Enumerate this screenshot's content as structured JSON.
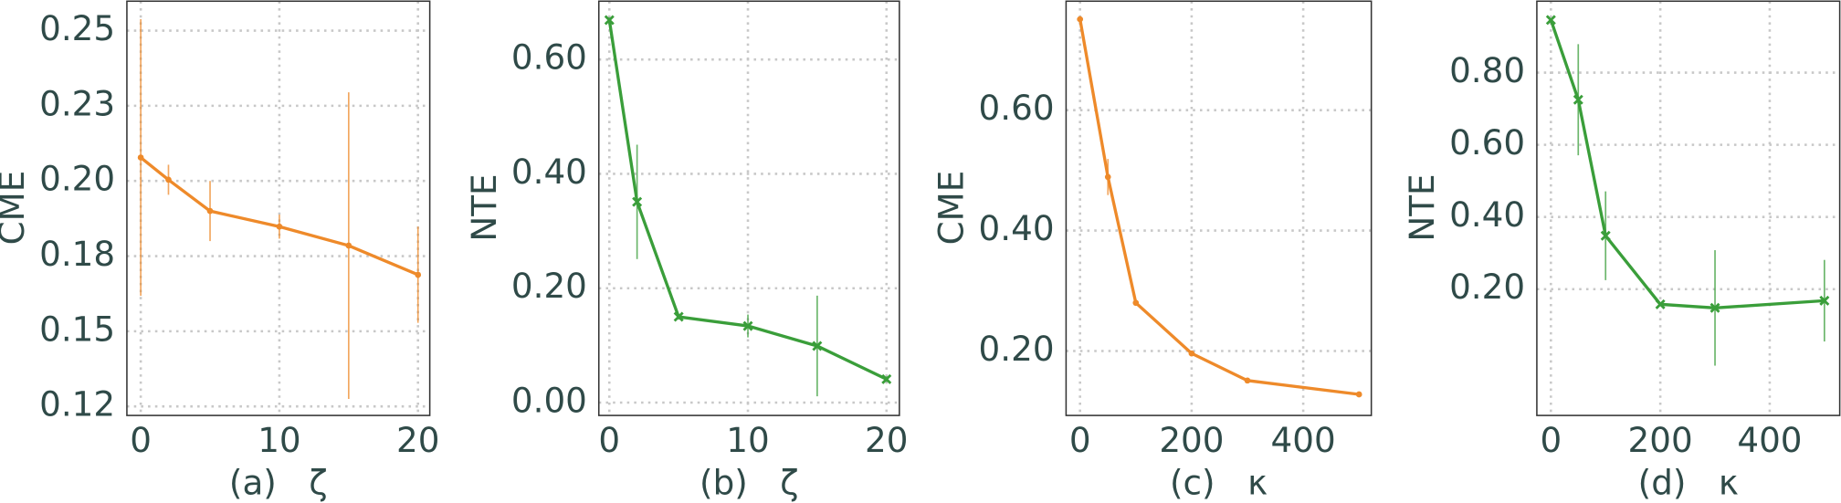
{
  "chart_data": [
    {
      "type": "line",
      "xlabel": "(a)   ζ",
      "ylabel": "CME",
      "color": "#ee8a2a",
      "marker": "dot",
      "grid": true,
      "x": [
        0,
        2,
        5,
        10,
        15,
        20
      ],
      "values": [
        0.2078,
        0.2004,
        0.19,
        0.1848,
        0.1785,
        0.1688
      ],
      "errors": [
        0.046,
        0.005,
        0.01,
        0.004,
        0.051,
        0.016
      ],
      "xlim": [
        -1.0,
        20.85
      ],
      "ylim": [
        0.122,
        0.2598
      ],
      "xticks": [
        0,
        10,
        20
      ],
      "yticks": [
        0.25,
        {
          "value": 0.225,
          "label": "0.23"
        },
        {
          "value": 0.2,
          "label": "0.20"
        },
        {
          "value": 0.175,
          "label": "0.18"
        },
        {
          "value": 0.15,
          "label": "0.15"
        },
        {
          "value": 0.125,
          "label": "0.12"
        }
      ]
    },
    {
      "type": "line",
      "xlabel": "(b)   ζ",
      "ylabel": "NTE",
      "color": "#3a9e3a",
      "marker": "x",
      "grid": true,
      "x": [
        0,
        2,
        5,
        10,
        15,
        20
      ],
      "values": [
        0.669,
        0.351,
        0.15,
        0.134,
        0.099,
        0.041
      ],
      "errors": [
        0.005,
        0.1,
        0.005,
        0.02,
        0.088,
        0.005
      ],
      "xlim": [
        -0.76,
        20.93
      ],
      "ylim": [
        -0.0225,
        0.702
      ],
      "xticks": [
        0,
        10,
        20
      ],
      "yticks": [
        {
          "value": 0.6,
          "label": "0.60"
        },
        {
          "value": 0.4,
          "label": "0.40"
        },
        {
          "value": 0.2,
          "label": "0.20"
        },
        {
          "value": 0,
          "label": "0.00"
        }
      ]
    },
    {
      "type": "line",
      "xlabel": "(c)   κ",
      "ylabel": "CME",
      "color": "#ee8a2a",
      "marker": "dot",
      "grid": true,
      "x": [
        0,
        50,
        100,
        200,
        300,
        500
      ],
      "values": [
        0.751,
        0.489,
        0.28,
        0.196,
        0.151,
        0.128
      ],
      "errors": [
        0.005,
        0.03,
        0.005,
        0.003,
        0.003,
        0.002
      ],
      "xlim": [
        -25,
        522
      ],
      "ylim": [
        0.093,
        0.781
      ],
      "xticks": [
        0,
        200,
        400
      ],
      "yticks": [
        {
          "value": 0.6,
          "label": "0.60"
        },
        {
          "value": 0.4,
          "label": "0.40"
        },
        {
          "value": 0.2,
          "label": "0.20"
        }
      ]
    },
    {
      "type": "line",
      "xlabel": "(d)   κ",
      "ylabel": "NTE",
      "color": "#3a9e3a",
      "marker": "x",
      "grid": true,
      "x": [
        0,
        50,
        100,
        200,
        300,
        500
      ],
      "values": [
        0.946,
        0.725,
        0.348,
        0.158,
        0.148,
        0.168
      ],
      "errors": [
        0.005,
        0.154,
        0.123,
        0.005,
        0.16,
        0.113
      ],
      "xlim": [
        -25.7,
        528
      ],
      "ylim": [
        -0.15,
        0.998
      ],
      "xticks": [
        0,
        200,
        400
      ],
      "yticks": [
        {
          "value": 0.8,
          "label": "0.80"
        },
        {
          "value": 0.6,
          "label": "0.60"
        },
        {
          "value": 0.4,
          "label": "0.40"
        },
        {
          "value": 0.2,
          "label": "0.20"
        }
      ]
    }
  ]
}
